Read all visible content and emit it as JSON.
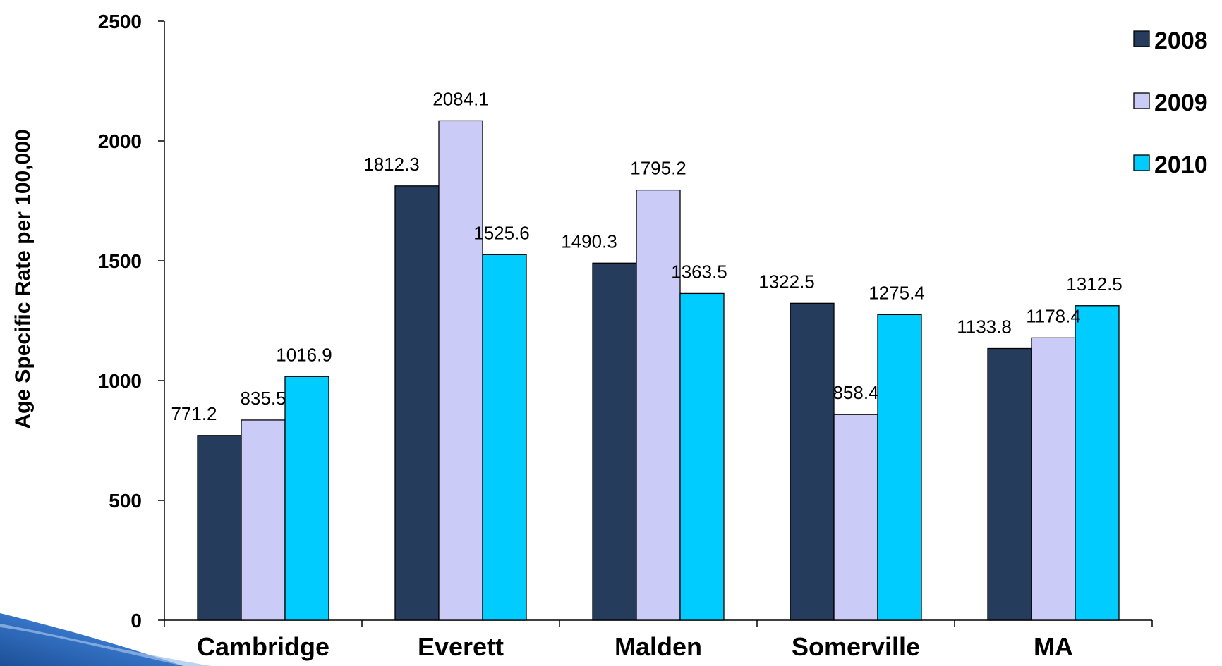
{
  "chart_data": {
    "type": "bar",
    "title": "",
    "xlabel": "",
    "ylabel": "Age Specific Rate per 100,000",
    "ylim": [
      0,
      2500
    ],
    "yticks": [
      "0",
      "500",
      "1000",
      "1500",
      "2000",
      "2500"
    ],
    "categories": [
      "Cambridge",
      "Everett",
      "Malden",
      "Somerville",
      "MA"
    ],
    "series": [
      {
        "name": "2008",
        "color": "#253c5c",
        "values": [
          771.2,
          1812.3,
          1490.3,
          1322.5,
          1133.8
        ],
        "labels": [
          "771.2",
          "1812.3",
          "1490.3",
          "1322.5",
          "1133.8"
        ]
      },
      {
        "name": "2009",
        "color": "#cbcbf7",
        "values": [
          835.5,
          2084.1,
          1795.2,
          858.4,
          1178.4
        ],
        "labels": [
          "835.5",
          "2084.1",
          "1795.2",
          "858.4",
          "1178.4"
        ]
      },
      {
        "name": "2010",
        "color": "#00ccff",
        "values": [
          1016.9,
          1525.6,
          1363.5,
          1275.4,
          1312.5
        ],
        "labels": [
          "1016.9",
          "1525.6",
          "1363.5",
          "1275.4",
          "1312.5"
        ]
      }
    ],
    "grid": false,
    "legend_position": "top-right"
  },
  "decoration": {
    "corner_swoosh_color": "#2a67b5"
  }
}
